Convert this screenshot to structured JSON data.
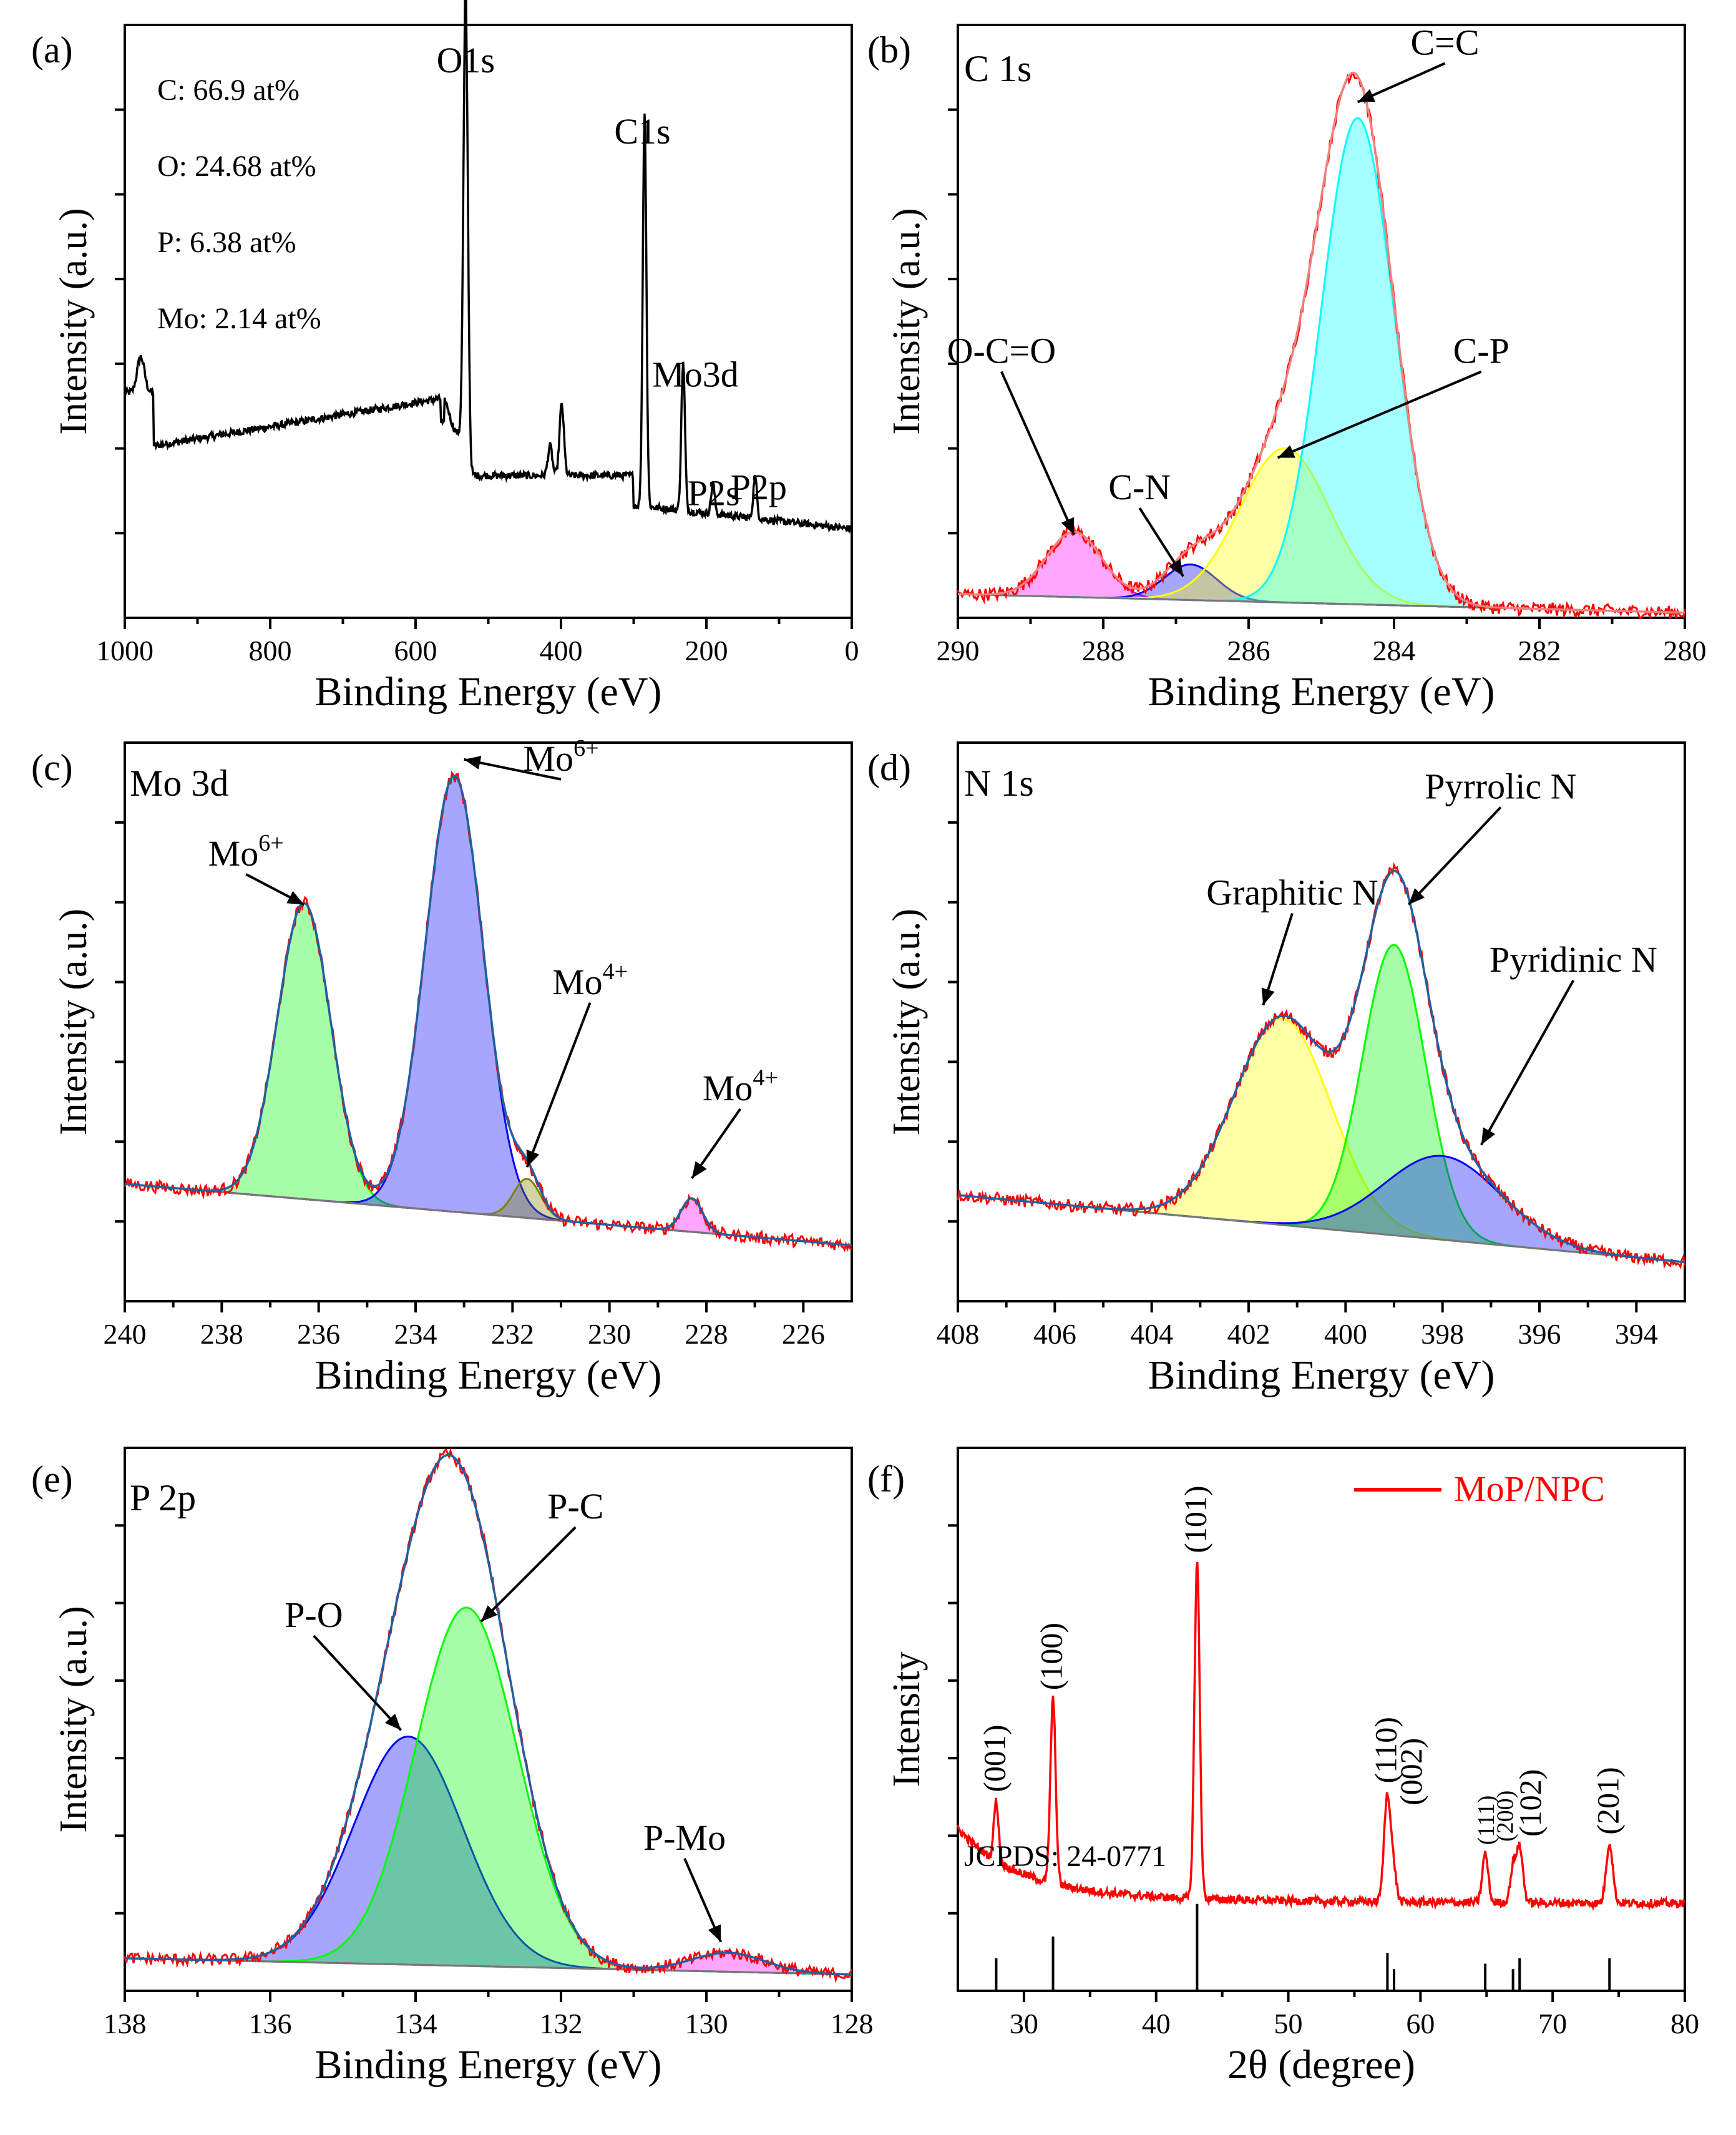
{
  "chart_data": [
    {
      "id": "a",
      "panel_label": "(a)",
      "type": "line",
      "xlabel": "Binding Energy (eV)",
      "ylabel": "Intensity (a.u.)",
      "xlim": [
        1000,
        0
      ],
      "ylim": [
        0,
        100
      ],
      "xticks": [
        1000,
        800,
        600,
        400,
        200,
        0
      ],
      "composition": [
        "C: 66.9 at%",
        "O: 24.68 at%",
        "P: 6.38 at%",
        "Mo: 2.14 at%"
      ],
      "survey_peaks": [
        {
          "x": 978,
          "h": 6,
          "w": 5
        },
        {
          "x": 531,
          "h": 78,
          "w": 3
        },
        {
          "x": 415,
          "h": 5,
          "w": 3
        },
        {
          "x": 399,
          "h": 12,
          "w": 3
        },
        {
          "x": 285,
          "h": 66,
          "w": 2.5
        },
        {
          "x": 232,
          "h": 25,
          "w": 2.5
        },
        {
          "x": 191,
          "h": 5,
          "w": 2.5
        },
        {
          "x": 133,
          "h": 7,
          "w": 2.5
        }
      ],
      "annotations": [
        {
          "text": "O1s",
          "x": 531,
          "y": 92
        },
        {
          "text": "C1s",
          "x": 288,
          "y": 80
        },
        {
          "text": "Mo3d",
          "x": 215,
          "y": 39
        },
        {
          "text": "P2s",
          "x": 190,
          "y": 19
        },
        {
          "text": "P2p",
          "x": 128,
          "y": 20
        }
      ]
    },
    {
      "id": "b",
      "panel_label": "(b)",
      "title": "C 1s",
      "type": "line",
      "xlabel": "Binding Energy (eV)",
      "ylabel": "Intensity (a.u.)",
      "xlim": [
        290,
        280
      ],
      "ylim": [
        0,
        100
      ],
      "xticks": [
        290,
        288,
        286,
        284,
        282,
        280
      ],
      "baseline": {
        "x0": 290,
        "y0": 4,
        "x1": 282,
        "y1": 1.5
      },
      "components": [
        {
          "name": "O-C=O",
          "center": 288.4,
          "height": 11,
          "sigma": 0.38,
          "color": "#ff00ff"
        },
        {
          "name": "C-N",
          "center": 286.8,
          "height": 6,
          "sigma": 0.36,
          "color": "#0000ff"
        },
        {
          "name": "C-P",
          "center": 285.5,
          "height": 26,
          "sigma": 0.62,
          "color": "#ffff00"
        },
        {
          "name": "C=C",
          "center": 284.5,
          "height": 82,
          "sigma": 0.5,
          "color": "#00ffff"
        }
      ],
      "annotations": [
        {
          "text": "C=C",
          "x": 283.3,
          "y": 95,
          "ax": 284.5,
          "ay": 87
        },
        {
          "text": "C-P",
          "x": 282.8,
          "y": 43,
          "ax": 285.6,
          "ay": 27
        },
        {
          "text": "C-N",
          "x": 287.5,
          "y": 20,
          "ax": 286.9,
          "ay": 7
        },
        {
          "text": "O-C=O",
          "x": 289.4,
          "y": 43,
          "ax": 288.4,
          "ay": 14
        }
      ]
    },
    {
      "id": "c",
      "panel_label": "(c)",
      "title": "Mo 3d",
      "type": "line",
      "xlabel": "Binding Energy (eV)",
      "ylabel": "Intensity (a.u.)",
      "xlim": [
        240,
        225
      ],
      "ylim": [
        0,
        100
      ],
      "xticks": [
        240,
        238,
        236,
        234,
        232,
        230,
        228,
        226
      ],
      "baseline": {
        "x0": 240,
        "y0": 21,
        "x1": 225,
        "y1": 10
      },
      "components": [
        {
          "name": "Mo6+",
          "center": 236.3,
          "height": 53,
          "sigma": 0.55,
          "color": "#00ff00"
        },
        {
          "name": "Mo6+",
          "center": 233.2,
          "height": 78,
          "sigma": 0.6,
          "color": "#0000ff"
        },
        {
          "name": "Mo4+",
          "center": 231.7,
          "height": 7,
          "sigma": 0.28,
          "color": "#808000"
        },
        {
          "name": "Mo4+",
          "center": 228.3,
          "height": 6,
          "sigma": 0.22,
          "color": "#ff00ff"
        }
      ],
      "annotations": [
        {
          "text": "Mo6+",
          "x": 237.5,
          "y": 78,
          "ax": 236.3,
          "ay": 71
        },
        {
          "text": "Mo6+",
          "x": 231.0,
          "y": 95,
          "ax": 233.0,
          "ay": 97
        },
        {
          "text": "Mo4+",
          "x": 230.4,
          "y": 55,
          "ax": 231.7,
          "ay": 24
        },
        {
          "text": "Mo4+",
          "x": 227.3,
          "y": 36,
          "ax": 228.3,
          "ay": 22
        }
      ]
    },
    {
      "id": "d",
      "panel_label": "(d)",
      "title": "N 1s",
      "type": "line",
      "xlabel": "Binding Energy (eV)",
      "ylabel": "Intensity (a.u.)",
      "xlim": [
        408,
        393
      ],
      "ylim": [
        0,
        100
      ],
      "xticks": [
        408,
        406,
        404,
        402,
        400,
        398,
        396,
        394
      ],
      "baseline": {
        "x0": 408,
        "y0": 19,
        "x1": 393,
        "y1": 7
      },
      "components": [
        {
          "name": "Graphitic N",
          "center": 401.3,
          "height": 37,
          "sigma": 1.0,
          "color": "#ffff00"
        },
        {
          "name": "Pyrrolic N",
          "center": 399.0,
          "height": 52,
          "sigma": 0.65,
          "color": "#00ff00"
        },
        {
          "name": "Pyridinic N",
          "center": 398.0,
          "height": 15,
          "sigma": 1.2,
          "color": "#0000ff"
        }
      ],
      "annotations": [
        {
          "text": "Graphitic N",
          "x": 401.1,
          "y": 71,
          "ax": 401.7,
          "ay": 53
        },
        {
          "text": "Pyrrolic N",
          "x": 396.8,
          "y": 90,
          "ax": 398.7,
          "ay": 71
        },
        {
          "text": "Pyridinic N",
          "x": 395.3,
          "y": 59,
          "ax": 397.2,
          "ay": 28
        }
      ]
    },
    {
      "id": "e",
      "panel_label": "(e)",
      "title": "P 2p",
      "type": "line",
      "xlabel": "Binding Energy (eV)",
      "ylabel": "Intensity (a.u.)",
      "xlim": [
        138,
        128
      ],
      "ylim": [
        0,
        100
      ],
      "xticks": [
        138,
        136,
        134,
        132,
        130,
        128
      ],
      "baseline": {
        "x0": 138,
        "y0": 6,
        "x1": 128,
        "y1": 3
      },
      "components": [
        {
          "name": "P-O",
          "center": 134.1,
          "height": 42,
          "sigma": 0.75,
          "color": "#0000ff"
        },
        {
          "name": "P-C",
          "center": 133.3,
          "height": 66,
          "sigma": 0.7,
          "color": "#00ff00"
        },
        {
          "name": "P-Mo",
          "center": 129.7,
          "height": 3.5,
          "sigma": 0.5,
          "color": "#ff00ff"
        }
      ],
      "annotations": [
        {
          "text": "P-C",
          "x": 131.8,
          "y": 87,
          "ax": 133.1,
          "ay": 68
        },
        {
          "text": "P-O",
          "x": 135.4,
          "y": 67,
          "ax": 134.2,
          "ay": 48
        },
        {
          "text": "P-Mo",
          "x": 130.3,
          "y": 26,
          "ax": 129.8,
          "ay": 9
        }
      ]
    },
    {
      "id": "f",
      "panel_label": "(f)",
      "type": "line",
      "xlabel": "2θ (degree)",
      "ylabel": "Intensity",
      "xlim": [
        25,
        80
      ],
      "ylim": [
        0,
        100
      ],
      "xticks": [
        30,
        40,
        50,
        60,
        70,
        80
      ],
      "legend": "MoP/NPC",
      "legend_position": "top-right",
      "reference": "JCPDS: 24-0771",
      "peaks": [
        {
          "label": "(001)",
          "x": 27.9,
          "h": 11,
          "w": 0.18,
          "small": false
        },
        {
          "label": "(100)",
          "x": 32.2,
          "h": 34,
          "w": 0.2,
          "small": false
        },
        {
          "label": "(101)",
          "x": 43.1,
          "h": 62,
          "w": 0.2,
          "small": false
        },
        {
          "label": "(110)",
          "x": 57.5,
          "h": 20,
          "w": 0.25,
          "small": false
        },
        {
          "label": "(002)",
          "x": 58.0,
          "h": 5,
          "w": 0.2,
          "small": false
        },
        {
          "label": "(111)",
          "x": 64.9,
          "h": 9,
          "w": 0.22,
          "small": true
        },
        {
          "label": "(200)",
          "x": 67.0,
          "h": 6,
          "w": 0.22,
          "small": true
        },
        {
          "label": "(102)",
          "x": 67.5,
          "h": 10,
          "w": 0.25,
          "small": false
        },
        {
          "label": "(201)",
          "x": 74.3,
          "h": 11,
          "w": 0.25,
          "small": false
        }
      ],
      "ref_lines": [
        {
          "x": 27.9,
          "h": 6
        },
        {
          "x": 32.2,
          "h": 10
        },
        {
          "x": 43.1,
          "h": 16
        },
        {
          "x": 57.5,
          "h": 7
        },
        {
          "x": 58.0,
          "h": 4
        },
        {
          "x": 64.9,
          "h": 5
        },
        {
          "x": 67.0,
          "h": 4
        },
        {
          "x": 67.5,
          "h": 6
        },
        {
          "x": 74.3,
          "h": 6
        }
      ]
    }
  ]
}
